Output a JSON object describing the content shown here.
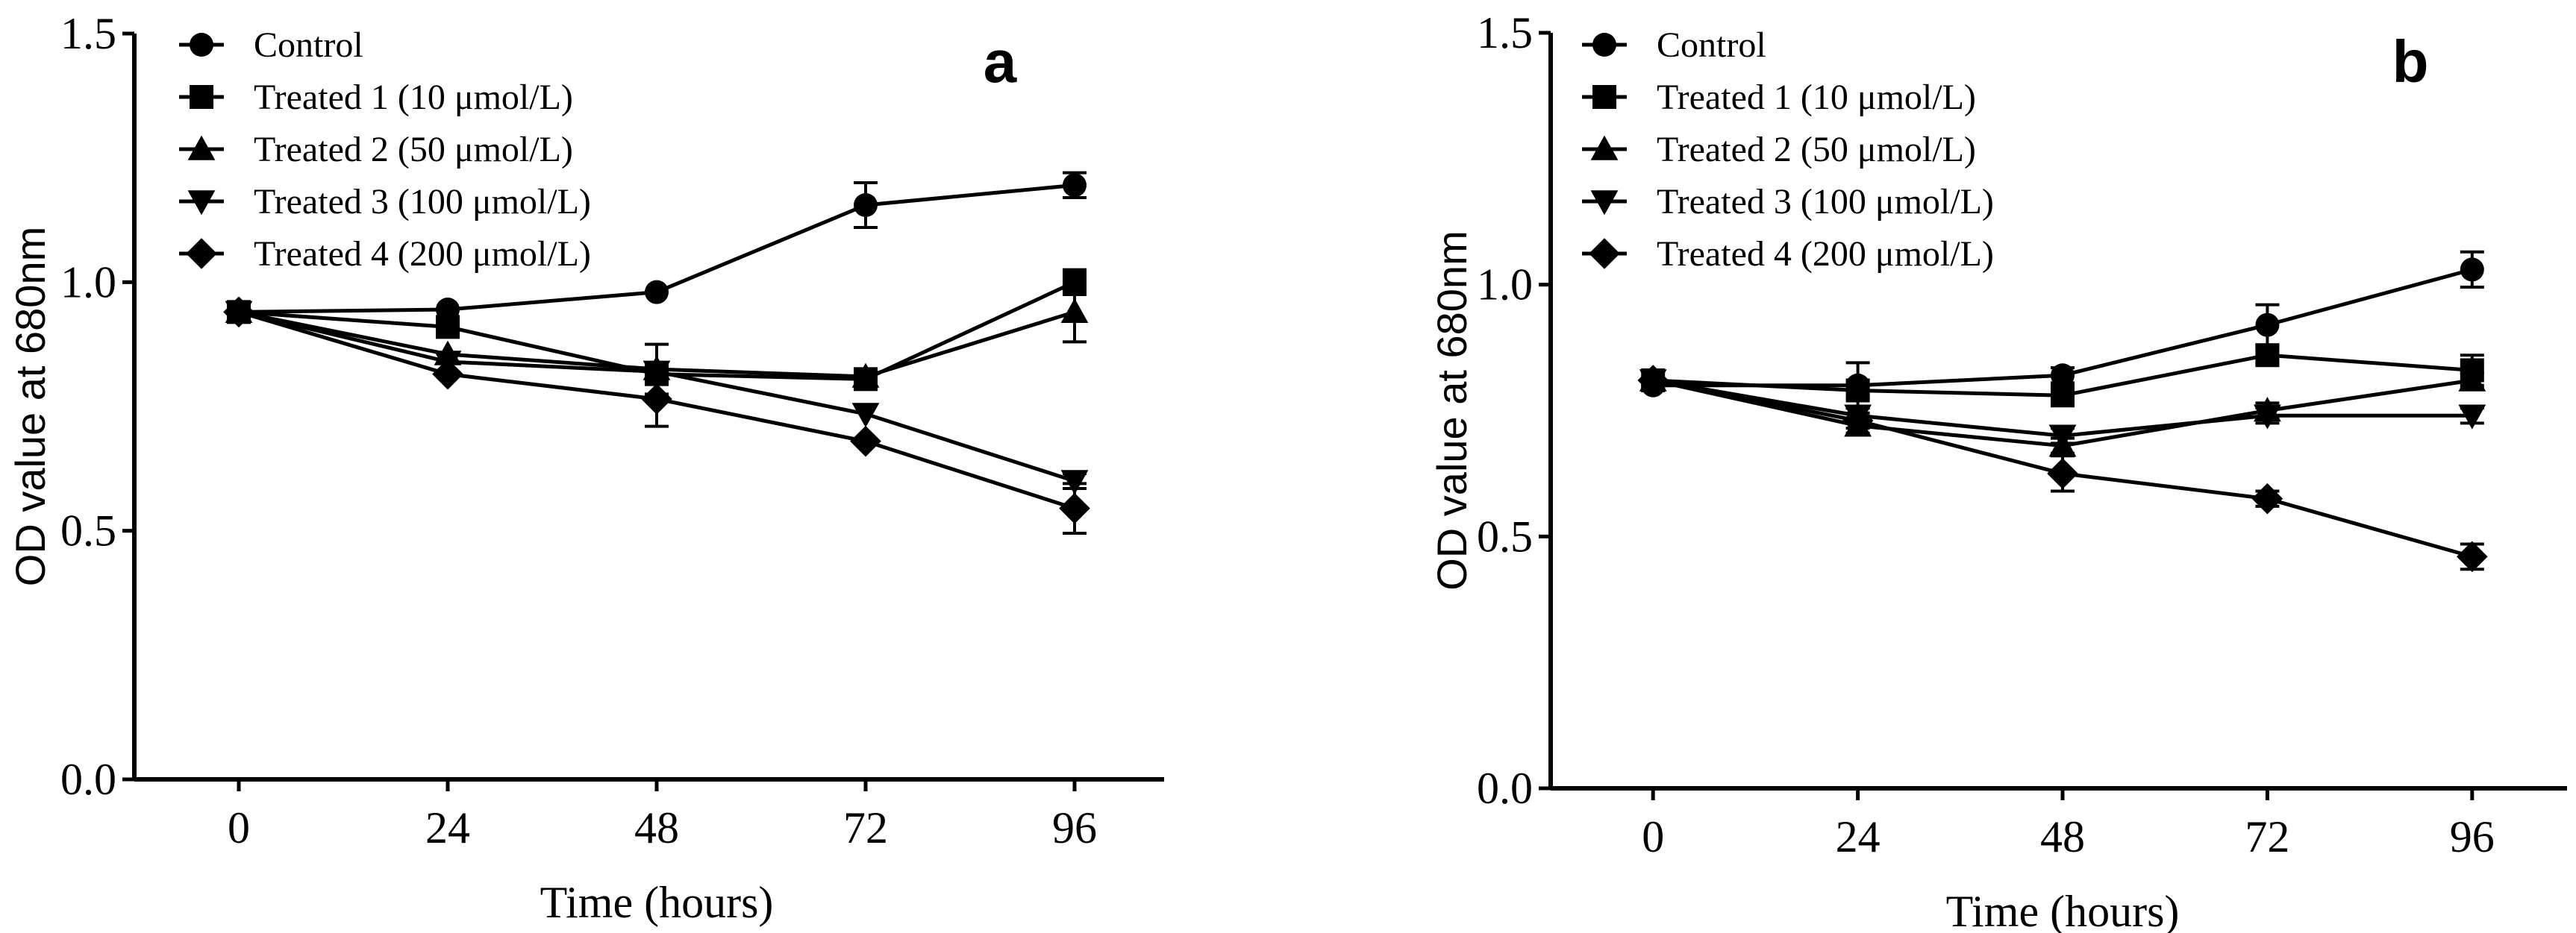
{
  "chart_data": [
    {
      "type": "line",
      "panel_label": "a",
      "xlabel": "Time (hours)",
      "ylabel": "OD value at 680nm",
      "x": [
        0,
        24,
        48,
        72,
        96
      ],
      "x_tick_labels": [
        "0",
        "24",
        "48",
        "72",
        "96"
      ],
      "xlim": [
        -12,
        108
      ],
      "ylim": [
        0.0,
        1.5
      ],
      "y_ticks": [
        0.0,
        0.5,
        1.0,
        1.5
      ],
      "y_tick_labels": [
        "0.0",
        "0.5",
        "1.0",
        "1.5"
      ],
      "legend_position": "top-left",
      "series": [
        {
          "name": "Control",
          "marker": "circle",
          "values": [
            0.94,
            0.945,
            0.98,
            1.155,
            1.195
          ],
          "errors": [
            0.01,
            0.01,
            0.01,
            0.045,
            0.025
          ]
        },
        {
          "name": "Treated 1 (10 μmol/L)",
          "marker": "square",
          "values": [
            0.94,
            0.91,
            0.815,
            0.805,
            1.0
          ],
          "errors": [
            0.01,
            0.01,
            0.015,
            0.01,
            0.025
          ]
        },
        {
          "name": "Treated 2 (50 μmol/L)",
          "marker": "triangle-up",
          "values": [
            0.94,
            0.855,
            0.825,
            0.81,
            0.94
          ],
          "errors": [
            0.01,
            0.01,
            0.05,
            0.01,
            0.06
          ]
        },
        {
          "name": "Treated 3 (100 μmol/L)",
          "marker": "triangle-down",
          "values": [
            0.94,
            0.84,
            0.82,
            0.735,
            0.6
          ],
          "errors": [
            0.01,
            0.01,
            0.01,
            0.01,
            0.015
          ]
        },
        {
          "name": "Treated 4 (200 μmol/L)",
          "marker": "diamond",
          "values": [
            0.94,
            0.815,
            0.765,
            0.68,
            0.545
          ],
          "errors": [
            0.01,
            0.01,
            0.055,
            0.01,
            0.05
          ]
        }
      ]
    },
    {
      "type": "line",
      "panel_label": "b",
      "xlabel": "Time (hours)",
      "ylabel": "OD value at 680nm",
      "x": [
        0,
        24,
        48,
        72,
        96
      ],
      "x_tick_labels": [
        "0",
        "24",
        "48",
        "72",
        "96"
      ],
      "xlim": [
        -12,
        108
      ],
      "ylim": [
        0.0,
        1.5
      ],
      "y_ticks": [
        0.0,
        0.5,
        1.0,
        1.5
      ],
      "y_tick_labels": [
        "0.0",
        "0.5",
        "1.0",
        "1.5"
      ],
      "legend_position": "top-left",
      "series": [
        {
          "name": "Control",
          "marker": "circle",
          "values": [
            0.8,
            0.8,
            0.82,
            0.92,
            1.03
          ],
          "errors": [
            0.01,
            0.045,
            0.015,
            0.04,
            0.035
          ]
        },
        {
          "name": "Treated 1 (10 μmol/L)",
          "marker": "square",
          "values": [
            0.81,
            0.79,
            0.78,
            0.86,
            0.83
          ],
          "errors": [
            0.01,
            0.015,
            0.02,
            0.015,
            0.03
          ]
        },
        {
          "name": "Treated 2 (50 μmol/L)",
          "marker": "triangle-up",
          "values": [
            0.81,
            0.72,
            0.68,
            0.75,
            0.81
          ],
          "errors": [
            0.01,
            0.015,
            0.015,
            0.015,
            0.015
          ]
        },
        {
          "name": "Treated 3 (100 μmol/L)",
          "marker": "triangle-down",
          "values": [
            0.81,
            0.74,
            0.7,
            0.74,
            0.74
          ],
          "errors": [
            0.01,
            0.015,
            0.015,
            0.015,
            0.015
          ]
        },
        {
          "name": "Treated 4 (200 μmol/L)",
          "marker": "diamond",
          "values": [
            0.81,
            0.73,
            0.625,
            0.575,
            0.46
          ],
          "errors": [
            0.01,
            0.015,
            0.035,
            0.015,
            0.025
          ]
        }
      ]
    }
  ]
}
